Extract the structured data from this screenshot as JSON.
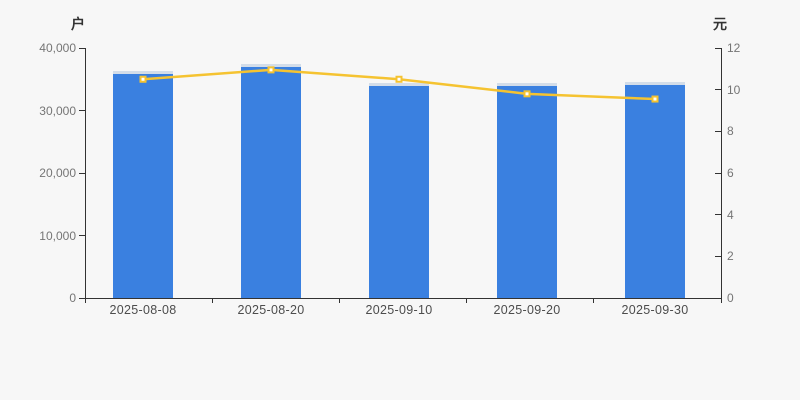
{
  "background": "#f7f7f7",
  "chart_data": {
    "type": "bar",
    "subtype": "bar-line-combo",
    "title": "",
    "categories": [
      "2025-08-08",
      "2025-08-20",
      "2025-09-10",
      "2025-09-20",
      "2025-09-30"
    ],
    "series": [
      {
        "id": "bars",
        "type": "bar",
        "axis": "left",
        "color": "#3a80e0",
        "cap_color": "#d3dde9",
        "values": [
          35900,
          36900,
          34000,
          33900,
          34100
        ]
      },
      {
        "id": "line",
        "type": "line",
        "axis": "right",
        "color": "#f5c331",
        "marker": "square-white-fill",
        "values": [
          10.5,
          10.95,
          10.5,
          9.8,
          9.55
        ]
      }
    ],
    "left_axis": {
      "label": "户",
      "min": 0,
      "max": 40000,
      "ticks": [
        "0",
        "10,000",
        "20,000",
        "30,000",
        "40,000"
      ]
    },
    "right_axis": {
      "label": "元",
      "min": 0,
      "max": 12,
      "ticks": [
        "0",
        "2",
        "4",
        "6",
        "8",
        "10",
        "12"
      ]
    },
    "legend": false,
    "grid": false,
    "axis_color": "#333333",
    "tick_label_color": "#757575",
    "x_label_color": "#4d4d4d"
  }
}
